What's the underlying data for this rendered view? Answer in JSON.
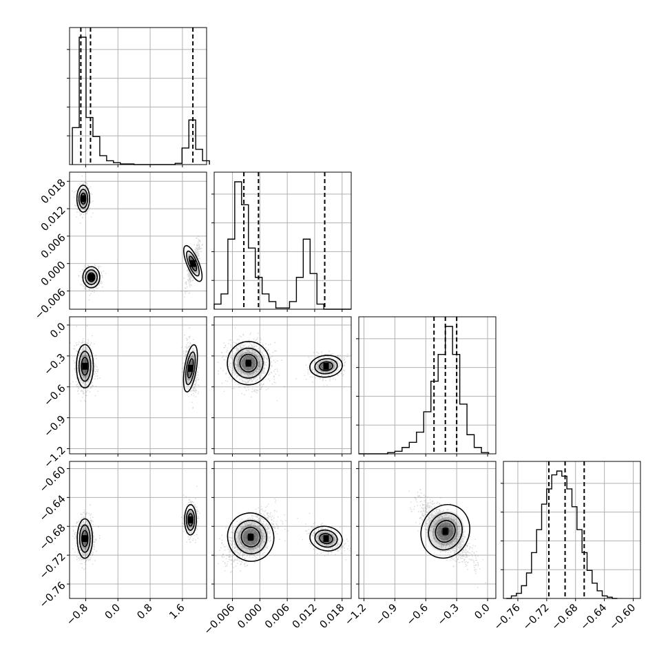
{
  "chart_data": {
    "type": "corner",
    "title": "",
    "grid": true,
    "parameters": [
      {
        "index": 0,
        "range": [
          -1.2,
          2.2
        ],
        "ticks": [
          "−0.8",
          "0.0",
          "0.8",
          "1.6"
        ],
        "tick_values": [
          -0.8,
          0.0,
          0.8,
          1.6
        ],
        "quantiles": [
          -0.92,
          -0.68,
          1.86
        ],
        "label": ""
      },
      {
        "index": 1,
        "range": [
          -0.01,
          0.02
        ],
        "ticks": [
          "−0.006",
          "0.000",
          "0.006",
          "0.012",
          "0.018"
        ],
        "tick_values": [
          -0.006,
          0.0,
          0.006,
          0.012,
          0.018
        ],
        "quantiles": [
          -0.0035,
          -0.0003,
          0.0142
        ],
        "label": ""
      },
      {
        "index": 2,
        "range": [
          -1.25,
          0.08
        ],
        "ticks": [
          "−1.2",
          "−0.9",
          "−0.6",
          "−0.3",
          "0.0"
        ],
        "tick_values": [
          -1.2,
          -0.9,
          -0.6,
          -0.3,
          0.0
        ],
        "quantiles": [
          -0.52,
          -0.41,
          -0.3
        ],
        "label": ""
      },
      {
        "index": 3,
        "range": [
          -0.78,
          -0.59
        ],
        "ticks": [
          "−0.76",
          "−0.72",
          "−0.68",
          "−0.64",
          "−0.60"
        ],
        "tick_values": [
          -0.76,
          -0.72,
          -0.68,
          -0.64,
          -0.6
        ],
        "quantiles": [
          -0.717,
          -0.6945,
          -0.668
        ],
        "label": ""
      }
    ],
    "histograms": [
      {
        "param": 0,
        "bin_edges": [
          -1.13,
          -0.96,
          -0.79,
          -0.62,
          -0.45,
          -0.28,
          -0.11,
          0.06,
          0.23,
          0.4,
          0.57,
          0.74,
          0.91,
          1.08,
          1.25,
          1.42,
          1.59,
          1.76,
          1.93,
          2.1,
          2.27
        ],
        "counts": [
          0.29,
          1.0,
          0.37,
          0.22,
          0.07,
          0.03,
          0.015,
          0.005,
          0.005,
          0.0,
          0.0,
          0.0,
          0.0,
          0.0,
          0.0,
          0.01,
          0.13,
          0.35,
          0.12,
          0.03
        ]
      },
      {
        "param": 1,
        "bin_edges": [
          -0.01,
          -0.0085,
          -0.007,
          -0.0055,
          -0.004,
          -0.0025,
          -0.001,
          0.0005,
          0.002,
          0.0035,
          0.005,
          0.0065,
          0.008,
          0.0095,
          0.011,
          0.0125,
          0.014,
          0.0155,
          0.017,
          0.0185,
          0.02
        ],
        "counts": [
          0.04,
          0.12,
          0.55,
          1.0,
          0.82,
          0.48,
          0.25,
          0.12,
          0.06,
          0.01,
          0.01,
          0.06,
          0.25,
          0.55,
          0.28,
          0.04,
          0.0,
          0.0,
          0.0,
          0.0
        ]
      },
      {
        "param": 2,
        "bin_edges": [
          -1.25,
          -1.18,
          -1.11,
          -1.04,
          -0.97,
          -0.9,
          -0.83,
          -0.76,
          -0.69,
          -0.62,
          -0.55,
          -0.48,
          -0.41,
          -0.34,
          -0.27,
          -0.2,
          -0.13,
          -0.06,
          0.01
        ],
        "counts": [
          0.0,
          0.0,
          0.0,
          0.0,
          0.01,
          0.02,
          0.05,
          0.09,
          0.17,
          0.33,
          0.57,
          0.78,
          1.0,
          0.78,
          0.39,
          0.15,
          0.05,
          0.01
        ]
      },
      {
        "param": 3,
        "bin_edges": [
          -0.776,
          -0.769,
          -0.762,
          -0.755,
          -0.748,
          -0.741,
          -0.734,
          -0.727,
          -0.72,
          -0.713,
          -0.706,
          -0.699,
          -0.692,
          -0.685,
          -0.678,
          -0.671,
          -0.664,
          -0.657,
          -0.65,
          -0.643,
          -0.636,
          -0.629,
          -0.622
        ],
        "counts": [
          0.0,
          0.02,
          0.04,
          0.1,
          0.2,
          0.36,
          0.54,
          0.74,
          0.86,
          0.97,
          1.0,
          0.96,
          0.86,
          0.72,
          0.54,
          0.36,
          0.22,
          0.12,
          0.06,
          0.02,
          0.01,
          0.0
        ]
      }
    ],
    "joint_clusters": [
      {
        "row": 1,
        "col": 0,
        "clusters": [
          {
            "cx": -0.86,
            "cy": 0.0142,
            "sx": 0.075,
            "sy": 0.0014,
            "rho": 0.0,
            "weight": 0.33
          },
          {
            "cx": -0.66,
            "cy": -0.003,
            "sx": 0.1,
            "sy": 0.0011,
            "rho": 0.0,
            "weight": 0.35
          },
          {
            "cx": 1.86,
            "cy": 0.0,
            "sx": 0.07,
            "sy": 0.002,
            "rho": 0.75,
            "weight": 0.32
          }
        ]
      },
      {
        "row": 2,
        "col": 0,
        "clusters": [
          {
            "cx": -0.82,
            "cy": -0.4,
            "sx": 0.1,
            "sy": 0.1,
            "rho": 0.0,
            "weight": 0.68
          },
          {
            "cx": 1.8,
            "cy": -0.42,
            "sx": 0.07,
            "sy": 0.11,
            "rho": -0.3,
            "weight": 0.32
          }
        ]
      },
      {
        "row": 2,
        "col": 1,
        "clusters": [
          {
            "cx": -0.0025,
            "cy": -0.37,
            "sx": 0.0022,
            "sy": 0.1,
            "rho": -0.1,
            "weight": 0.68
          },
          {
            "cx": 0.0145,
            "cy": -0.4,
            "sx": 0.0017,
            "sy": 0.05,
            "rho": 0.2,
            "weight": 0.32
          }
        ]
      },
      {
        "row": 3,
        "col": 0,
        "clusters": [
          {
            "cx": -0.82,
            "cy": -0.697,
            "sx": 0.09,
            "sy": 0.013,
            "rho": 0.0,
            "weight": 0.68
          },
          {
            "cx": 1.8,
            "cy": -0.671,
            "sx": 0.07,
            "sy": 0.01,
            "rho": 0.0,
            "weight": 0.32
          }
        ]
      },
      {
        "row": 3,
        "col": 1,
        "clusters": [
          {
            "cx": -0.002,
            "cy": -0.695,
            "sx": 0.0024,
            "sy": 0.016,
            "rho": 0.55,
            "weight": 0.68
          },
          {
            "cx": 0.0145,
            "cy": -0.697,
            "sx": 0.0017,
            "sy": 0.008,
            "rho": -0.4,
            "weight": 0.32
          }
        ]
      },
      {
        "row": 3,
        "col": 2,
        "clusters": [
          {
            "cx": -0.41,
            "cy": -0.687,
            "sx": 0.11,
            "sy": 0.018,
            "rho": -0.78,
            "weight": 1.0
          }
        ]
      }
    ]
  }
}
